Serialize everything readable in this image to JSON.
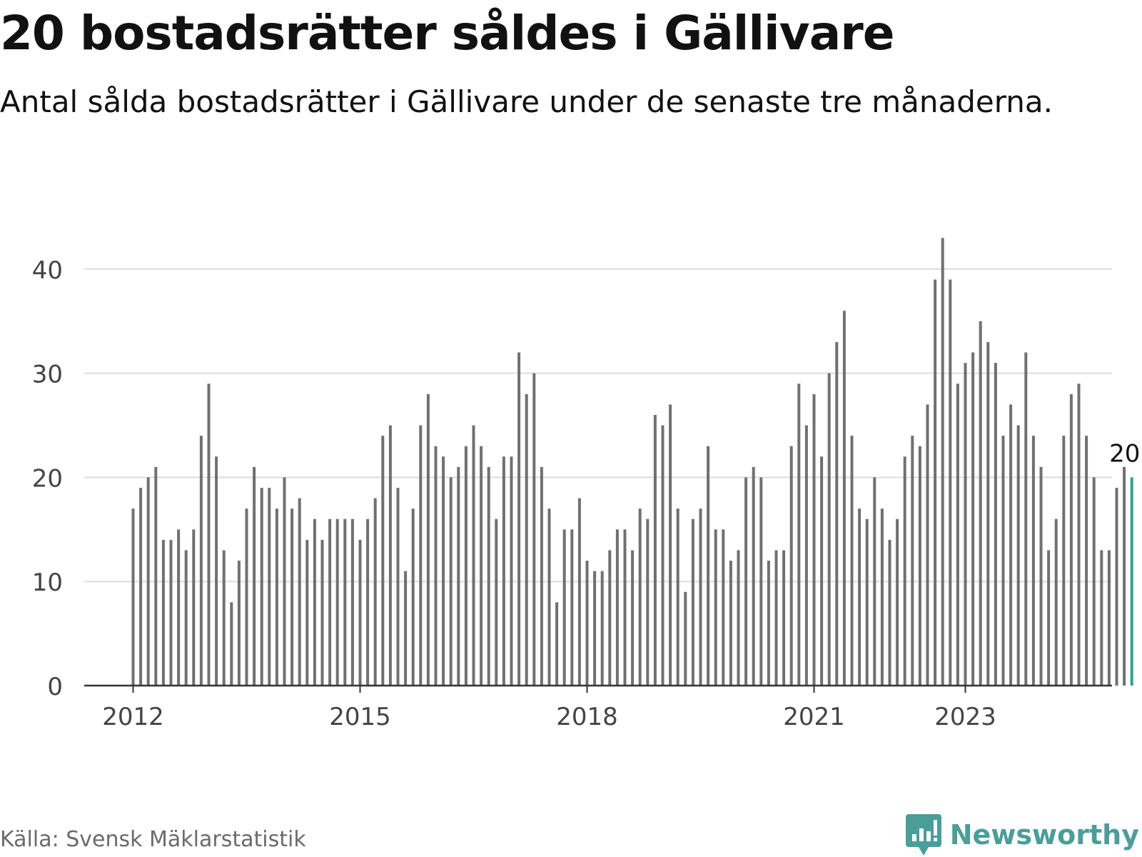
{
  "header": {
    "title": "20 bostadsrätter såldes i Gällivare",
    "subtitle": "Antal sålda bostadsrätter i Gällivare under de senaste tre månaderna."
  },
  "footer": {
    "source": "Källa: Svensk Mäklarstatistik",
    "brand": "Newsworthy"
  },
  "colors": {
    "bar": "#707070",
    "highlight": "#2aa198",
    "grid": "#dddddd",
    "axis": "#333333",
    "tick_text": "#444444",
    "brand": "#4a9e9a"
  },
  "chart_data": {
    "type": "bar",
    "title": "20 bostadsrätter såldes i Gällivare",
    "subtitle": "Antal sålda bostadsrätter i Gällivare under de senaste tre månaderna.",
    "xlabel": "",
    "ylabel": "",
    "ylim": [
      0,
      45
    ],
    "yticks": [
      0,
      10,
      20,
      30,
      40
    ],
    "grid": true,
    "start": "2012-01",
    "xticks": [
      {
        "label": "2012",
        "index": 0
      },
      {
        "label": "2015",
        "index": 30
      },
      {
        "label": "2018",
        "index": 60
      },
      {
        "label": "2021",
        "index": 90
      },
      {
        "label": "2023",
        "index": 110
      }
    ],
    "values": [
      17,
      19,
      20,
      21,
      14,
      14,
      15,
      13,
      15,
      24,
      29,
      22,
      13,
      8,
      12,
      17,
      21,
      19,
      19,
      17,
      20,
      17,
      18,
      14,
      16,
      14,
      16,
      16,
      16,
      16,
      14,
      16,
      18,
      24,
      25,
      19,
      11,
      17,
      25,
      28,
      23,
      22,
      20,
      21,
      23,
      25,
      23,
      21,
      16,
      22,
      22,
      32,
      28,
      30,
      21,
      17,
      8,
      15,
      15,
      18,
      12,
      11,
      11,
      13,
      15,
      15,
      13,
      17,
      16,
      26,
      25,
      27,
      17,
      9,
      16,
      17,
      23,
      15,
      15,
      12,
      13,
      20,
      21,
      20,
      12,
      13,
      13,
      23,
      29,
      25,
      28,
      22,
      30,
      33,
      36,
      24,
      17,
      16,
      20,
      17,
      14,
      16,
      22,
      24,
      23,
      27,
      39,
      43,
      39,
      29,
      31,
      32,
      35,
      33,
      31,
      24,
      27,
      25,
      32,
      24,
      21,
      13,
      16,
      24,
      28,
      29,
      24,
      20,
      13,
      13,
      19,
      21,
      20
    ],
    "highlight_last": true,
    "annotation": {
      "label": "20",
      "index": 132
    }
  }
}
